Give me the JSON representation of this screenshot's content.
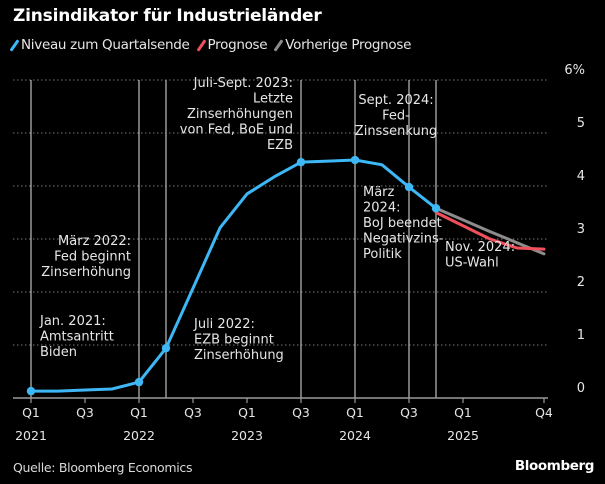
{
  "header": {
    "title": "Zinsindikator für Industrieländer"
  },
  "legend": [
    {
      "label": "Niveau zum Quartalsende",
      "color": "#3db7f5"
    },
    {
      "label": "Prognose",
      "color": "#f0505c"
    },
    {
      "label": "Vorherige Prognose",
      "color": "#8c8c8c"
    }
  ],
  "footer": {
    "source": "Quelle: Bloomberg Economics",
    "brand": "Bloomberg"
  },
  "chart_data": {
    "type": "line",
    "title": "Zinsindikator für Industrieländer",
    "xlabel": "",
    "ylabel": "%",
    "ylim": [
      0,
      6
    ],
    "grid": true,
    "legend_position": "top-left",
    "y_ticks": [
      "0",
      "1",
      "2",
      "3",
      "4",
      "5",
      "6%"
    ],
    "x_ticks": [
      {
        "q": 0,
        "label": "Q1",
        "year": "2021"
      },
      {
        "q": 2,
        "label": "Q3",
        "year": ""
      },
      {
        "q": 4,
        "label": "Q1",
        "year": "2022"
      },
      {
        "q": 6,
        "label": "Q3",
        "year": ""
      },
      {
        "q": 8,
        "label": "Q1",
        "year": "2023"
      },
      {
        "q": 10,
        "label": "Q3",
        "year": ""
      },
      {
        "q": 12,
        "label": "Q1",
        "year": "2024"
      },
      {
        "q": 14,
        "label": "Q3",
        "year": ""
      },
      {
        "q": 16,
        "label": "Q1",
        "year": "2025"
      },
      {
        "q": 19,
        "label": "Q4",
        "year": ""
      }
    ],
    "x": [
      "Q1 2021",
      "Q2 2021",
      "Q3 2021",
      "Q4 2021",
      "Q1 2022",
      "Q2 2022",
      "Q3 2022",
      "Q4 2022",
      "Q1 2023",
      "Q2 2023",
      "Q3 2023",
      "Q4 2023",
      "Q1 2024",
      "Q2 2024",
      "Q3 2024",
      "Q4 2024",
      "Q1 2025",
      "Q2 2025",
      "Q3 2025",
      "Q4 2025"
    ],
    "series": [
      {
        "name": "Niveau zum Quartalsende",
        "color": "#3db7f5",
        "start_q": 0,
        "values": [
          0.13,
          0.13,
          0.15,
          0.17,
          0.3,
          0.94,
          2.07,
          3.21,
          3.85,
          4.17,
          4.45,
          4.47,
          4.49,
          4.4,
          3.98,
          3.58
        ],
        "markers_at": [
          0,
          4,
          5,
          10,
          12,
          14,
          15
        ]
      },
      {
        "name": "Vorherige Prognose",
        "color": "#8c8c8c",
        "start_q": 15,
        "values": [
          3.58,
          3.36,
          3.14,
          2.93,
          2.72
        ]
      },
      {
        "name": "Prognose",
        "color": "#f0505c",
        "start_q": 15,
        "values": [
          3.5,
          3.25,
          3.0,
          2.83,
          2.81
        ]
      }
    ],
    "event_lines": [
      {
        "q": 0,
        "label": [
          "Jan. 2021:",
          "Amtsantritt",
          "Biden"
        ]
      },
      {
        "q": 4,
        "label": [
          "März 2022:",
          "Fed beginnt",
          "Zinserhöhung"
        ]
      },
      {
        "q": 5,
        "label": [
          "Juli 2022:",
          "EZB beginnt",
          "Zinserhöhung"
        ]
      },
      {
        "q": 10,
        "label": [
          "Juli-Sept. 2023:",
          "Letzte",
          "Zinserhöhungen",
          "von Fed, BoE und",
          "EZB"
        ]
      },
      {
        "q": 12,
        "label": [
          "März",
          "2024:",
          "BoJ beendet",
          "Negativzins-",
          "Politik"
        ]
      },
      {
        "q": 14,
        "label": [
          "Sept. 2024:",
          "Fed-",
          "Zinssenkung"
        ]
      },
      {
        "q": 15,
        "label": [
          "Nov. 2024:",
          "US-Wahl"
        ]
      }
    ]
  }
}
